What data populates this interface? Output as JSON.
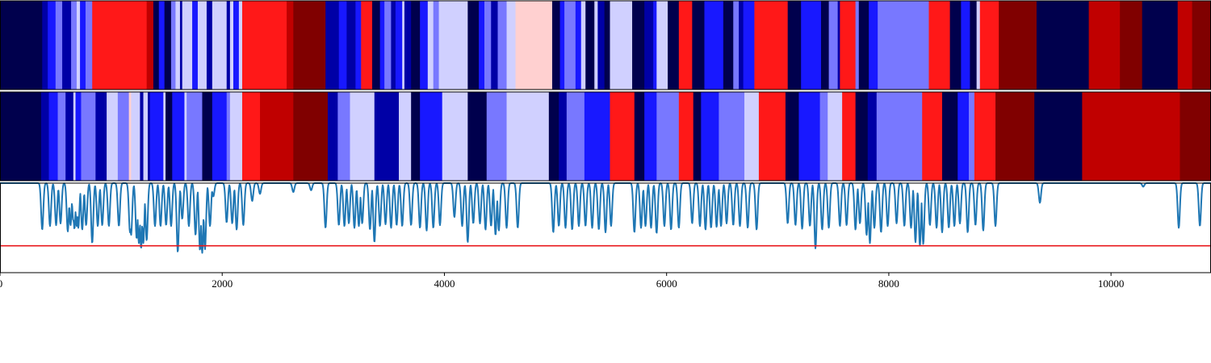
{
  "chart_data": [
    {
      "type": "heatmap",
      "title": "",
      "xlim": [
        0,
        10900
      ],
      "colormap": "seismic",
      "levels": [
        -4,
        -3,
        -2,
        -1,
        0,
        1,
        2,
        3,
        4
      ],
      "segments": [
        [
          0,
          380,
          -4
        ],
        [
          380,
          430,
          -3
        ],
        [
          430,
          500,
          -2
        ],
        [
          500,
          560,
          -1
        ],
        [
          560,
          640,
          -3
        ],
        [
          640,
          690,
          -1
        ],
        [
          690,
          720,
          0
        ],
        [
          720,
          770,
          -2
        ],
        [
          770,
          830,
          -1
        ],
        [
          830,
          1320,
          2
        ],
        [
          1320,
          1380,
          3
        ],
        [
          1380,
          1430,
          -4
        ],
        [
          1430,
          1480,
          -2
        ],
        [
          1480,
          1540,
          -4
        ],
        [
          1540,
          1580,
          -1
        ],
        [
          1580,
          1620,
          0
        ],
        [
          1620,
          1640,
          -3
        ],
        [
          1640,
          1730,
          0
        ],
        [
          1730,
          1780,
          -2
        ],
        [
          1780,
          1860,
          0
        ],
        [
          1860,
          1910,
          -3
        ],
        [
          1910,
          2040,
          0
        ],
        [
          2040,
          2070,
          -3
        ],
        [
          2070,
          2100,
          0
        ],
        [
          2100,
          2150,
          -2
        ],
        [
          2150,
          2180,
          0
        ],
        [
          2180,
          2580,
          2
        ],
        [
          2580,
          2640,
          3
        ],
        [
          2640,
          2930,
          4
        ],
        [
          2930,
          3050,
          -3
        ],
        [
          3050,
          3120,
          -2
        ],
        [
          3120,
          3200,
          -3
        ],
        [
          3200,
          3250,
          -2
        ],
        [
          3250,
          3350,
          2
        ],
        [
          3350,
          3420,
          -4
        ],
        [
          3420,
          3460,
          -2
        ],
        [
          3460,
          3520,
          -1
        ],
        [
          3520,
          3560,
          -3
        ],
        [
          3560,
          3620,
          -2
        ],
        [
          3620,
          3640,
          0
        ],
        [
          3640,
          3700,
          -3
        ],
        [
          3700,
          3780,
          -4
        ],
        [
          3780,
          3850,
          -2
        ],
        [
          3850,
          3900,
          0
        ],
        [
          3900,
          3950,
          -1
        ],
        [
          3950,
          3990,
          0
        ],
        [
          3990,
          4210,
          0
        ],
        [
          4210,
          4310,
          -4
        ],
        [
          4310,
          4360,
          -2
        ],
        [
          4360,
          4420,
          -1
        ],
        [
          4420,
          4480,
          -3
        ],
        [
          4480,
          4560,
          -1
        ],
        [
          4560,
          4640,
          0
        ],
        [
          4640,
          4970,
          1
        ],
        [
          4970,
          5040,
          -4
        ],
        [
          5040,
          5080,
          -2
        ],
        [
          5080,
          5180,
          -1
        ],
        [
          5180,
          5230,
          -2
        ],
        [
          5230,
          5270,
          0
        ],
        [
          5270,
          5350,
          -4
        ],
        [
          5350,
          5380,
          0
        ],
        [
          5380,
          5440,
          -3
        ],
        [
          5440,
          5490,
          -4
        ],
        [
          5490,
          5690,
          0
        ],
        [
          5690,
          5800,
          -4
        ],
        [
          5800,
          5880,
          -3
        ],
        [
          5880,
          5910,
          -2
        ],
        [
          5910,
          6010,
          0
        ],
        [
          6010,
          6110,
          -4
        ],
        [
          6110,
          6230,
          2
        ],
        [
          6230,
          6340,
          -4
        ],
        [
          6340,
          6510,
          -2
        ],
        [
          6510,
          6600,
          -4
        ],
        [
          6600,
          6650,
          -1
        ],
        [
          6650,
          6690,
          -3
        ],
        [
          6690,
          6790,
          -2
        ],
        [
          6790,
          7090,
          2
        ],
        [
          7090,
          7210,
          -4
        ],
        [
          7210,
          7390,
          -2
        ],
        [
          7390,
          7460,
          -4
        ],
        [
          7460,
          7540,
          -1
        ],
        [
          7540,
          7560,
          -3
        ],
        [
          7560,
          7700,
          2
        ],
        [
          7700,
          7730,
          -1
        ],
        [
          7730,
          7820,
          -4
        ],
        [
          7820,
          7900,
          -2
        ],
        [
          7900,
          8360,
          -1
        ],
        [
          8360,
          8550,
          2
        ],
        [
          8550,
          8650,
          -4
        ],
        [
          8650,
          8730,
          -2
        ],
        [
          8730,
          8790,
          -4
        ],
        [
          8790,
          8820,
          0
        ],
        [
          8820,
          8990,
          2
        ],
        [
          8990,
          9330,
          4
        ],
        [
          9330,
          9800,
          -4
        ],
        [
          9800,
          10080,
          3
        ],
        [
          10080,
          10280,
          4
        ],
        [
          10280,
          10600,
          -4
        ],
        [
          10600,
          10730,
          3
        ],
        [
          10730,
          10800,
          4
        ],
        [
          10800,
          10900,
          4
        ]
      ]
    },
    {
      "type": "heatmap",
      "title": "",
      "xlim": [
        0,
        10900
      ],
      "colormap": "seismic",
      "levels": [
        -4,
        -3,
        -2,
        -1,
        0,
        1,
        2,
        3,
        4
      ],
      "segments": [
        [
          0,
          370,
          -4
        ],
        [
          370,
          440,
          -3
        ],
        [
          440,
          520,
          -2
        ],
        [
          520,
          590,
          -1
        ],
        [
          590,
          660,
          -3
        ],
        [
          660,
          680,
          0
        ],
        [
          680,
          730,
          -2
        ],
        [
          730,
          860,
          -1
        ],
        [
          860,
          960,
          -3
        ],
        [
          960,
          1060,
          0
        ],
        [
          1060,
          1160,
          -1
        ],
        [
          1160,
          1180,
          1
        ],
        [
          1180,
          1260,
          0
        ],
        [
          1260,
          1290,
          -3
        ],
        [
          1290,
          1330,
          0
        ],
        [
          1330,
          1350,
          -3
        ],
        [
          1350,
          1470,
          -2
        ],
        [
          1470,
          1490,
          0
        ],
        [
          1490,
          1550,
          -4
        ],
        [
          1550,
          1660,
          -2
        ],
        [
          1660,
          1680,
          0
        ],
        [
          1680,
          1820,
          -1
        ],
        [
          1820,
          1910,
          -4
        ],
        [
          1910,
          2040,
          -2
        ],
        [
          2040,
          2070,
          -1
        ],
        [
          2070,
          2180,
          0
        ],
        [
          2180,
          2340,
          2
        ],
        [
          2340,
          2640,
          3
        ],
        [
          2640,
          2950,
          4
        ],
        [
          2950,
          3040,
          -3
        ],
        [
          3040,
          3150,
          -1
        ],
        [
          3150,
          3200,
          0
        ],
        [
          3200,
          3370,
          0
        ],
        [
          3370,
          3590,
          -3
        ],
        [
          3590,
          3700,
          0
        ],
        [
          3700,
          3780,
          -4
        ],
        [
          3780,
          3980,
          -2
        ],
        [
          3980,
          4060,
          0
        ],
        [
          4060,
          4210,
          0
        ],
        [
          4210,
          4380,
          -4
        ],
        [
          4380,
          4560,
          -1
        ],
        [
          4560,
          4940,
          0
        ],
        [
          4940,
          5030,
          -4
        ],
        [
          5030,
          5100,
          -3
        ],
        [
          5100,
          5260,
          -1
        ],
        [
          5260,
          5490,
          -2
        ],
        [
          5490,
          5710,
          2
        ],
        [
          5710,
          5800,
          -4
        ],
        [
          5800,
          5910,
          -2
        ],
        [
          5910,
          6110,
          -1
        ],
        [
          6110,
          6240,
          2
        ],
        [
          6240,
          6310,
          -4
        ],
        [
          6310,
          6470,
          -2
        ],
        [
          6470,
          6700,
          -1
        ],
        [
          6700,
          6830,
          0
        ],
        [
          6830,
          7070,
          2
        ],
        [
          7070,
          7190,
          -4
        ],
        [
          7190,
          7380,
          -2
        ],
        [
          7380,
          7450,
          -1
        ],
        [
          7450,
          7580,
          0
        ],
        [
          7580,
          7700,
          2
        ],
        [
          7700,
          7810,
          -4
        ],
        [
          7810,
          7890,
          -3
        ],
        [
          7890,
          8300,
          -1
        ],
        [
          8300,
          8480,
          2
        ],
        [
          8480,
          8620,
          -4
        ],
        [
          8620,
          8720,
          -2
        ],
        [
          8720,
          8770,
          -1
        ],
        [
          8770,
          8960,
          2
        ],
        [
          8960,
          9310,
          4
        ],
        [
          9310,
          9740,
          -4
        ],
        [
          9740,
          10620,
          3
        ],
        [
          10620,
          10900,
          4
        ]
      ]
    },
    {
      "type": "line",
      "title": "",
      "xlabel": "",
      "ylabel": "",
      "xlim": [
        0,
        10900
      ],
      "ylim": [
        0,
        1
      ],
      "x_ticks": [
        "0",
        "2000",
        "4000",
        "6000",
        "8000",
        "10000"
      ],
      "x_tick_values": [
        0,
        2000,
        4000,
        6000,
        8000,
        10000
      ],
      "threshold": 0.3,
      "baseline": 1.0,
      "colors": {
        "line": "#1f77b4",
        "threshold": "#e8171b"
      },
      "dips": [
        [
          380,
          0.48
        ],
        [
          450,
          0.52
        ],
        [
          505,
          0.53
        ],
        [
          545,
          0.55
        ],
        [
          610,
          0.46
        ],
        [
          635,
          0.53
        ],
        [
          660,
          0.58
        ],
        [
          670,
          0.49
        ],
        [
          690,
          0.52
        ],
        [
          705,
          0.5
        ],
        [
          740,
          0.48
        ],
        [
          775,
          0.53
        ],
        [
          830,
          0.33
        ],
        [
          880,
          0.52
        ],
        [
          920,
          0.53
        ],
        [
          980,
          0.52
        ],
        [
          1070,
          0.52
        ],
        [
          1170,
          0.45
        ],
        [
          1180,
          0.42
        ],
        [
          1230,
          0.38
        ],
        [
          1250,
          0.33
        ],
        [
          1270,
          0.27
        ],
        [
          1290,
          0.33
        ],
        [
          1320,
          0.36
        ],
        [
          1395,
          0.52
        ],
        [
          1445,
          0.52
        ],
        [
          1495,
          0.53
        ],
        [
          1540,
          0.52
        ],
        [
          1600,
          0.23
        ],
        [
          1640,
          0.6
        ],
        [
          1700,
          0.52
        ],
        [
          1760,
          0.42
        ],
        [
          1800,
          0.25
        ],
        [
          1820,
          0.22
        ],
        [
          1845,
          0.26
        ],
        [
          1890,
          0.52
        ],
        [
          1920,
          0.85
        ],
        [
          2040,
          0.56
        ],
        [
          2090,
          0.55
        ],
        [
          2130,
          0.48
        ],
        [
          2190,
          0.53
        ],
        [
          2270,
          0.8
        ],
        [
          2340,
          0.88
        ],
        [
          2640,
          0.9
        ],
        [
          2800,
          0.92
        ],
        [
          2930,
          0.5
        ],
        [
          3050,
          0.53
        ],
        [
          3100,
          0.52
        ],
        [
          3140,
          0.55
        ],
        [
          3190,
          0.5
        ],
        [
          3230,
          0.52
        ],
        [
          3260,
          0.55
        ],
        [
          3330,
          0.48
        ],
        [
          3370,
          0.34
        ],
        [
          3420,
          0.52
        ],
        [
          3470,
          0.54
        ],
        [
          3520,
          0.5
        ],
        [
          3570,
          0.53
        ],
        [
          3620,
          0.52
        ],
        [
          3700,
          0.53
        ],
        [
          3780,
          0.5
        ],
        [
          3840,
          0.47
        ],
        [
          3900,
          0.5
        ],
        [
          3960,
          0.53
        ],
        [
          4090,
          0.62
        ],
        [
          4160,
          0.52
        ],
        [
          4210,
          0.34
        ],
        [
          4260,
          0.55
        ],
        [
          4320,
          0.55
        ],
        [
          4370,
          0.48
        ],
        [
          4420,
          0.52
        ],
        [
          4460,
          0.42
        ],
        [
          4490,
          0.47
        ],
        [
          4560,
          0.5
        ],
        [
          4660,
          0.5
        ],
        [
          4980,
          0.45
        ],
        [
          5030,
          0.52
        ],
        [
          5090,
          0.5
        ],
        [
          5150,
          0.48
        ],
        [
          5210,
          0.52
        ],
        [
          5270,
          0.52
        ],
        [
          5330,
          0.5
        ],
        [
          5390,
          0.48
        ],
        [
          5450,
          0.45
        ],
        [
          5500,
          0.52
        ],
        [
          5710,
          0.45
        ],
        [
          5770,
          0.5
        ],
        [
          5810,
          0.52
        ],
        [
          5860,
          0.5
        ],
        [
          5910,
          0.44
        ],
        [
          5980,
          0.52
        ],
        [
          6040,
          0.48
        ],
        [
          6110,
          0.5
        ],
        [
          6230,
          0.55
        ],
        [
          6300,
          0.52
        ],
        [
          6350,
          0.48
        ],
        [
          6400,
          0.5
        ],
        [
          6450,
          0.51
        ],
        [
          6490,
          0.52
        ],
        [
          6540,
          0.55
        ],
        [
          6600,
          0.53
        ],
        [
          6660,
          0.52
        ],
        [
          6730,
          0.5
        ],
        [
          6810,
          0.48
        ],
        [
          7090,
          0.55
        ],
        [
          7160,
          0.53
        ],
        [
          7220,
          0.49
        ],
        [
          7290,
          0.52
        ],
        [
          7340,
          0.27
        ],
        [
          7400,
          0.48
        ],
        [
          7460,
          0.5
        ],
        [
          7560,
          0.52
        ],
        [
          7620,
          0.53
        ],
        [
          7700,
          0.48
        ],
        [
          7740,
          0.55
        ],
        [
          7800,
          0.42
        ],
        [
          7830,
          0.33
        ],
        [
          7870,
          0.5
        ],
        [
          7930,
          0.45
        ],
        [
          7990,
          0.52
        ],
        [
          8070,
          0.55
        ],
        [
          8140,
          0.52
        ],
        [
          8200,
          0.5
        ],
        [
          8240,
          0.34
        ],
        [
          8280,
          0.3
        ],
        [
          8310,
          0.32
        ],
        [
          8370,
          0.53
        ],
        [
          8430,
          0.5
        ],
        [
          8480,
          0.45
        ],
        [
          8540,
          0.5
        ],
        [
          8590,
          0.52
        ],
        [
          8640,
          0.55
        ],
        [
          8710,
          0.45
        ],
        [
          8780,
          0.53
        ],
        [
          8850,
          0.47
        ],
        [
          8960,
          0.52
        ],
        [
          9360,
          0.78
        ],
        [
          10290,
          0.96
        ],
        [
          10610,
          0.5
        ],
        [
          10800,
          0.52
        ]
      ]
    }
  ]
}
